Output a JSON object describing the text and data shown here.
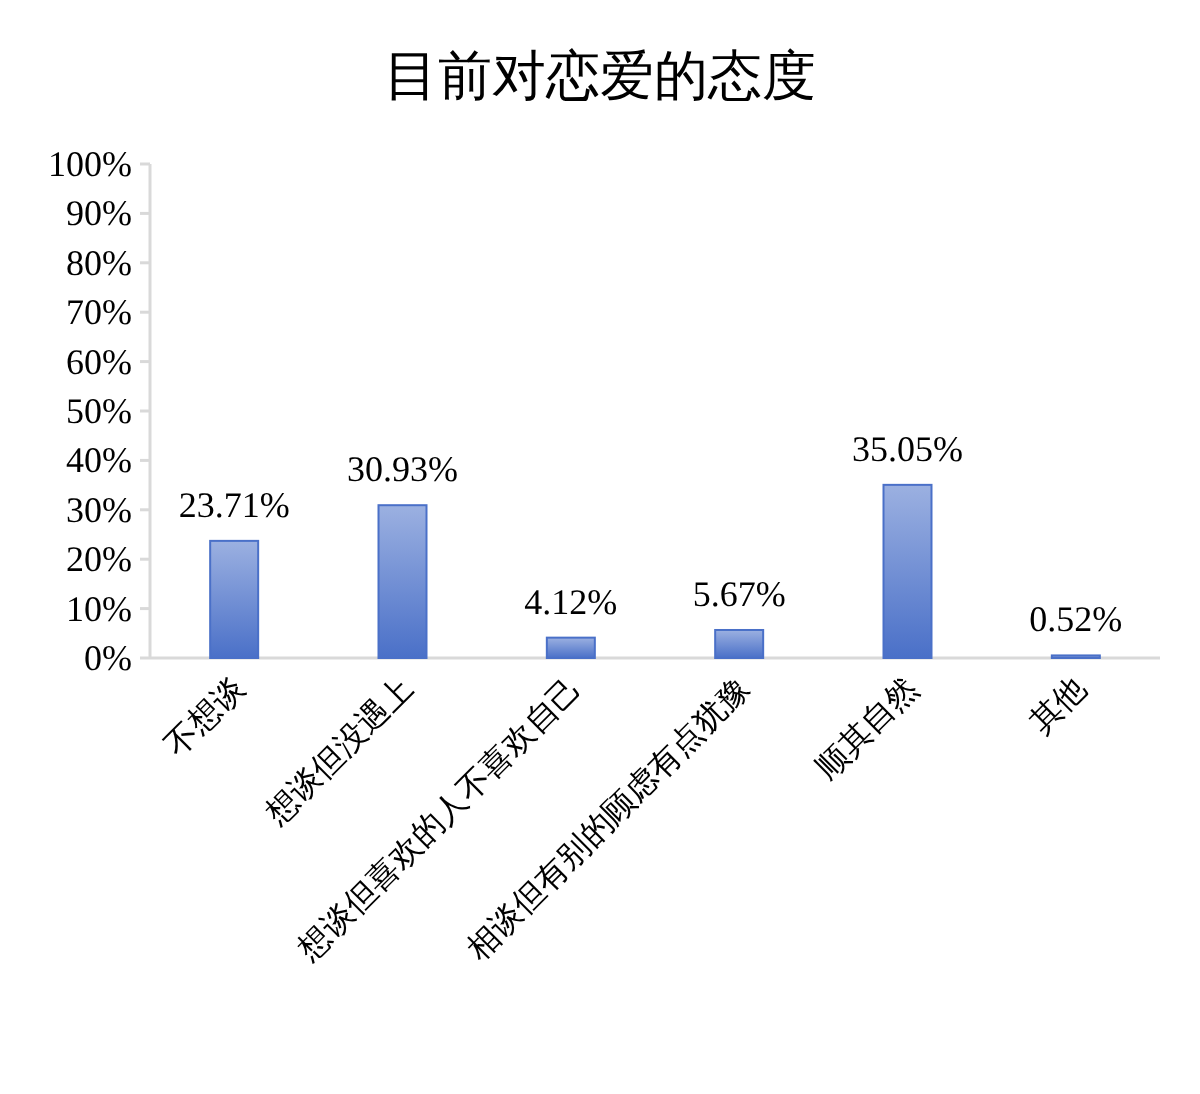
{
  "chart_data": {
    "type": "bar",
    "title": "目前对恋爱的态度",
    "categories": [
      "不想谈",
      "想谈但没遇上",
      "想谈但喜欢的人不喜欢自己",
      "相谈但有别的顾虑有点犹豫",
      "顺其自然",
      "其他"
    ],
    "values": [
      23.71,
      30.93,
      4.12,
      5.67,
      35.05,
      0.52
    ],
    "value_labels": [
      "23.71%",
      "30.93%",
      "4.12%",
      "5.67%",
      "35.05%",
      "0.52%"
    ],
    "color": "#4a70c8",
    "ylim": [
      0,
      100
    ],
    "yticks": [
      {
        "value": 0,
        "label": "0%"
      },
      {
        "value": 10,
        "label": "10%"
      },
      {
        "value": 20,
        "label": "20%"
      },
      {
        "value": 30,
        "label": "30%"
      },
      {
        "value": 40,
        "label": "40%"
      },
      {
        "value": 50,
        "label": "50%"
      },
      {
        "value": 60,
        "label": "60%"
      },
      {
        "value": 70,
        "label": "70%"
      },
      {
        "value": 80,
        "label": "80%"
      },
      {
        "value": 90,
        "label": "90%"
      },
      {
        "value": 100,
        "label": "100%"
      }
    ],
    "grid": false
  }
}
